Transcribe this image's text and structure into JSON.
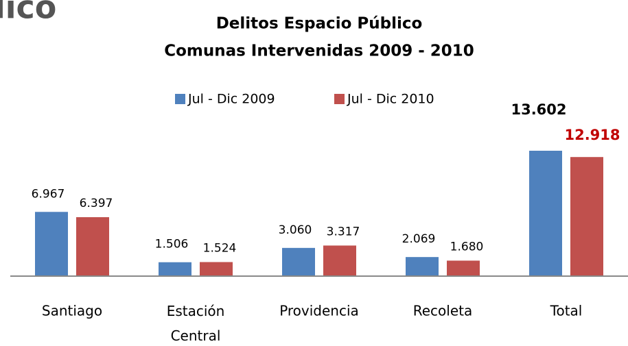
{
  "header_fragment": "lico",
  "chart_data": {
    "type": "bar",
    "title": "Delitos Espacio Público",
    "subtitle": "Comunas Intervenidas 2009 - 2010",
    "categories": [
      "Santiago",
      "Estación Central",
      "Providencia",
      "Recoleta",
      "Total"
    ],
    "series": [
      {
        "name": "Jul - Dic 2009",
        "color": "#4f81bd",
        "values": [
          6967,
          1506,
          3060,
          2069,
          13602
        ],
        "value_labels": [
          "6.967",
          "1.506",
          "3.060",
          "2.069",
          "13.602"
        ]
      },
      {
        "name": "Jul - Dic 2010",
        "color": "#c0504d",
        "values": [
          6397,
          1524,
          3317,
          1680,
          12918
        ],
        "value_labels": [
          "6.397",
          "1.524",
          "3.317",
          "1.680",
          "12.918"
        ]
      }
    ],
    "highlight_label_color": "#c00000",
    "legend": "top"
  }
}
